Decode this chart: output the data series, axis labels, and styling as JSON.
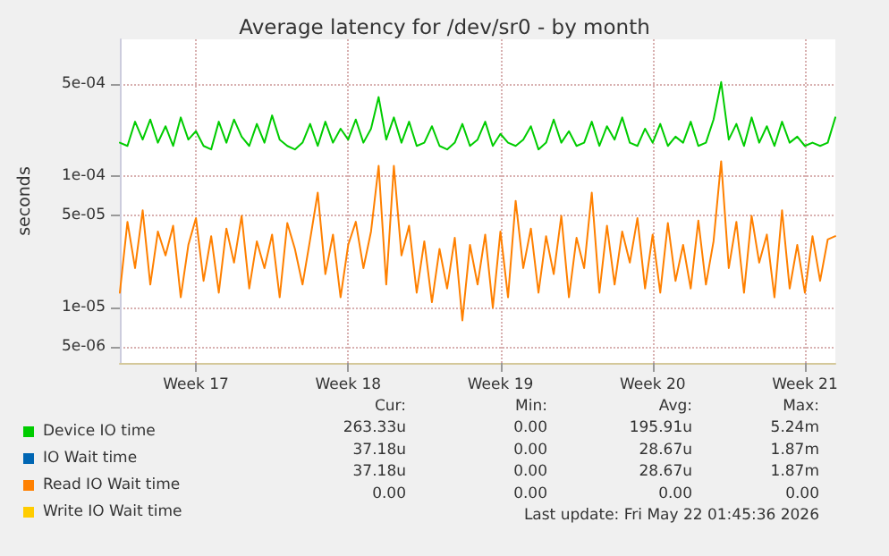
{
  "chart_data": {
    "type": "line",
    "title": "Average latency for /dev/sr0 - by month",
    "ylabel": "seconds",
    "categories": [
      null,
      null,
      null,
      null,
      null,
      null,
      null,
      null,
      null,
      null,
      "Week 17",
      null,
      null,
      null,
      null,
      null,
      null,
      null,
      null,
      null,
      null,
      null,
      null,
      null,
      null,
      null,
      null,
      null,
      null,
      null,
      "Week 18",
      null,
      null,
      null,
      null,
      null,
      null,
      null,
      null,
      null,
      null,
      null,
      null,
      null,
      null,
      null,
      null,
      null,
      null,
      null,
      "Week 19",
      null,
      null,
      null,
      null,
      null,
      null,
      null,
      null,
      null,
      null,
      null,
      null,
      null,
      null,
      null,
      null,
      null,
      null,
      null,
      "Week 20",
      null,
      null,
      null,
      null,
      null,
      null,
      null,
      null,
      null,
      null,
      null,
      null,
      null,
      null,
      null,
      null,
      null,
      null,
      null,
      "Week 21",
      null,
      null,
      null,
      null
    ],
    "series": [
      {
        "name": "Device IO time",
        "color": "#00cc00",
        "values": [
          0.00018,
          0.00017,
          0.00026,
          0.00019,
          0.00027,
          0.00018,
          0.00024,
          0.00017,
          0.00028,
          0.00019,
          0.00022,
          0.00017,
          0.00016,
          0.00026,
          0.00018,
          0.00027,
          0.0002,
          0.00017,
          0.00025,
          0.00018,
          0.00029,
          0.00019,
          0.00017,
          0.00016,
          0.00018,
          0.00025,
          0.00017,
          0.00026,
          0.00018,
          0.00023,
          0.00019,
          0.00027,
          0.00018,
          0.00023,
          0.0004,
          0.00019,
          0.00028,
          0.00018,
          0.00026,
          0.00017,
          0.00018,
          0.00024,
          0.00017,
          0.00016,
          0.00018,
          0.00025,
          0.00017,
          0.00019,
          0.00026,
          0.00017,
          0.00021,
          0.00018,
          0.00017,
          0.00019,
          0.00024,
          0.00016,
          0.00018,
          0.00027,
          0.00018,
          0.00022,
          0.00017,
          0.00018,
          0.00026,
          0.00017,
          0.00024,
          0.00019,
          0.00028,
          0.00018,
          0.00017,
          0.00023,
          0.00018,
          0.00025,
          0.00017,
          0.0002,
          0.00018,
          0.00026,
          0.00017,
          0.00018,
          0.00027,
          0.00052,
          0.00019,
          0.00025,
          0.00017,
          0.00028,
          0.00018,
          0.00024,
          0.00017,
          0.00026,
          0.00018,
          0.0002,
          0.00017,
          0.00018,
          0.00017,
          0.00018,
          0.00028
        ]
      },
      {
        "name": "IO Wait time",
        "color": "#0066b3",
        "values": [
          null,
          null,
          null,
          null,
          null,
          null,
          null,
          null,
          null,
          null,
          null,
          null,
          null,
          null,
          null,
          null,
          null,
          null,
          null,
          null,
          null,
          null,
          null,
          null,
          null,
          null,
          null,
          null,
          null,
          null,
          null,
          null,
          null,
          null,
          null,
          null,
          null,
          null,
          null,
          null,
          null,
          null,
          null,
          null,
          null,
          null,
          null,
          null,
          null,
          null,
          null,
          null,
          null,
          null,
          null,
          null,
          null,
          null,
          null,
          null,
          null,
          null,
          null,
          null,
          null,
          null,
          null,
          null,
          null,
          null,
          null,
          null,
          null,
          null,
          null,
          null,
          null,
          null,
          null,
          null,
          null,
          null,
          null,
          null,
          null,
          null,
          null,
          null,
          null,
          null,
          null,
          null,
          null,
          null,
          null
        ]
      },
      {
        "name": "Read IO Wait time",
        "color": "#ff8000",
        "values": [
          1.3e-05,
          4.5e-05,
          2e-05,
          5.5e-05,
          1.5e-05,
          3.8e-05,
          2.5e-05,
          4.2e-05,
          1.2e-05,
          3e-05,
          4.8e-05,
          1.6e-05,
          3.5e-05,
          1.3e-05,
          4e-05,
          2.2e-05,
          5e-05,
          1.4e-05,
          3.2e-05,
          2e-05,
          3.6e-05,
          1.2e-05,
          4.4e-05,
          2.8e-05,
          1.5e-05,
          3.3e-05,
          7.5e-05,
          1.8e-05,
          3.6e-05,
          1.2e-05,
          3e-05,
          4.5e-05,
          2e-05,
          3.8e-05,
          0.00012,
          1.5e-05,
          0.00012,
          2.5e-05,
          4.2e-05,
          1.3e-05,
          3.2e-05,
          1.1e-05,
          2.8e-05,
          1.4e-05,
          3.4e-05,
          8e-06,
          3e-05,
          1.5e-05,
          3.6e-05,
          1e-05,
          3.8e-05,
          1.2e-05,
          6.5e-05,
          2e-05,
          4e-05,
          1.3e-05,
          3.5e-05,
          1.8e-05,
          5e-05,
          1.2e-05,
          3.4e-05,
          2e-05,
          7.5e-05,
          1.3e-05,
          4.2e-05,
          1.5e-05,
          3.8e-05,
          2.2e-05,
          4.8e-05,
          1.4e-05,
          3.6e-05,
          1.3e-05,
          4.4e-05,
          1.6e-05,
          3e-05,
          1.4e-05,
          4.6e-05,
          1.5e-05,
          3.2e-05,
          0.00013,
          2e-05,
          4.5e-05,
          1.3e-05,
          5e-05,
          2.2e-05,
          3.6e-05,
          1.2e-05,
          5.5e-05,
          1.4e-05,
          3e-05,
          1.3e-05,
          3.5e-05,
          1.6e-05,
          3.3e-05,
          3.5e-05
        ]
      },
      {
        "name": "Write IO Wait time",
        "color": "#ffcc00",
        "values": [
          null,
          null,
          null,
          null,
          null,
          null,
          null,
          null,
          null,
          null,
          null,
          null,
          null,
          null,
          null,
          null,
          null,
          null,
          null,
          null,
          null,
          null,
          null,
          null,
          null,
          null,
          null,
          null,
          null,
          null,
          null,
          null,
          null,
          null,
          null,
          null,
          null,
          null,
          null,
          null,
          null,
          null,
          null,
          null,
          null,
          null,
          null,
          null,
          null,
          null,
          null,
          null,
          null,
          null,
          null,
          null,
          null,
          null,
          null,
          null,
          null,
          null,
          null,
          null,
          null,
          null,
          null,
          null,
          null,
          null,
          null,
          null,
          null,
          null,
          null,
          null,
          null,
          null,
          null,
          null,
          null,
          null,
          null,
          null,
          null,
          null,
          null,
          null,
          null,
          null,
          null,
          null,
          null,
          null,
          null
        ]
      }
    ],
    "log": "y",
    "ylim": [
      3.8e-06,
      0.0011
    ],
    "yticks": [
      {
        "value": 5e-06,
        "label": "5e-06"
      },
      {
        "value": 1e-05,
        "label": "1e-05"
      },
      {
        "value": 5e-05,
        "label": "5e-05"
      },
      {
        "value": 0.0001,
        "label": "1e-04"
      },
      {
        "value": 0.0005,
        "label": "5e-04"
      }
    ],
    "grid": true,
    "legend": "bottom",
    "marker": "none",
    "line_style": "solid",
    "annotations": [
      "Cur:",
      "Min:",
      "Avg:",
      "Max:",
      "263.33u",
      "0.00",
      "195.91u",
      "5.24m",
      "37.18u",
      "0.00",
      "28.67u",
      "1.87m",
      "37.18u",
      "0.00",
      "28.67u",
      "1.87m",
      "0.00",
      "0.00",
      "0.00",
      "0.00",
      "Last update: Fri May 22 01:45:36 2026"
    ]
  }
}
